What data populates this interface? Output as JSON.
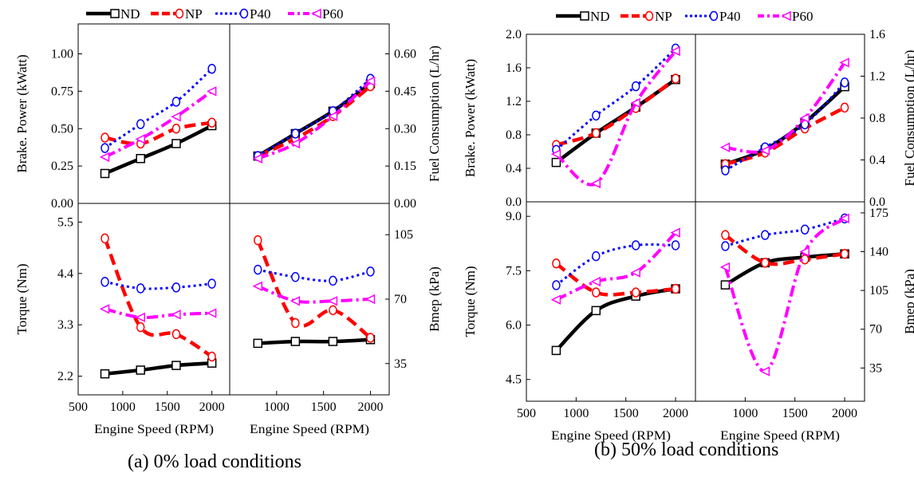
{
  "legend": [
    "ND",
    "NP",
    "P40",
    "P60"
  ],
  "series_styles": {
    "ND": {
      "color": "#000000",
      "marker": "square"
    },
    "NP": {
      "color": "#ff0000",
      "marker": "circle"
    },
    "P40": {
      "color": "#0000ff",
      "marker": "circle"
    },
    "P60": {
      "color": "#ff00ff",
      "marker": "triangle-left"
    }
  },
  "captions": {
    "a": "(a) 0% load conditions",
    "b": "(b) 50% load conditions"
  },
  "chart_data": [
    {
      "id": "a-brake-power",
      "panel": "a",
      "type": "line",
      "xlabel": "",
      "ylabel": "Brake. Power (kWatt)",
      "xlim": [
        500,
        2200
      ],
      "ylim": [
        0,
        1.2
      ],
      "yticks": [
        0.0,
        0.25,
        0.5,
        0.75,
        1.0
      ],
      "x": [
        800,
        1200,
        1600,
        2000
      ],
      "series": [
        {
          "name": "ND",
          "values": [
            0.2,
            0.3,
            0.4,
            0.52
          ]
        },
        {
          "name": "NP",
          "values": [
            0.44,
            0.4,
            0.5,
            0.54
          ]
        },
        {
          "name": "P40",
          "values": [
            0.37,
            0.53,
            0.68,
            0.9
          ]
        },
        {
          "name": "P60",
          "values": [
            0.31,
            0.43,
            0.58,
            0.75
          ]
        }
      ]
    },
    {
      "id": "a-fuel",
      "panel": "a",
      "type": "line",
      "xlabel": "",
      "ylabel": "Fuel Consumption (L/hr)",
      "xlim": [
        500,
        2200
      ],
      "ylim": [
        0,
        0.72
      ],
      "yticks": [
        0.0,
        0.15,
        0.3,
        0.45,
        0.6
      ],
      "x": [
        800,
        1200,
        1600,
        2000
      ],
      "series": [
        {
          "name": "ND",
          "values": [
            0.19,
            0.28,
            0.37,
            0.48
          ]
        },
        {
          "name": "NP",
          "values": [
            0.19,
            0.26,
            0.35,
            0.47
          ]
        },
        {
          "name": "P40",
          "values": [
            0.19,
            0.28,
            0.37,
            0.5
          ]
        },
        {
          "name": "P60",
          "values": [
            0.18,
            0.24,
            0.35,
            0.49
          ]
        }
      ]
    },
    {
      "id": "a-torque",
      "panel": "a",
      "type": "line",
      "xlabel": "Engine Speed (RPM)",
      "ylabel": "Torque (Nm)",
      "xlim": [
        500,
        2200
      ],
      "ylim": [
        1.8,
        5.9
      ],
      "yticks": [
        2.2,
        3.3,
        4.4,
        5.5
      ],
      "xticks": [
        500,
        1000,
        1500,
        2000
      ],
      "x": [
        800,
        1200,
        1600,
        2000
      ],
      "series": [
        {
          "name": "ND",
          "values": [
            2.25,
            2.33,
            2.43,
            2.48
          ]
        },
        {
          "name": "NP",
          "values": [
            5.15,
            3.25,
            3.1,
            2.62
          ]
        },
        {
          "name": "P40",
          "values": [
            4.22,
            4.08,
            4.1,
            4.18
          ]
        },
        {
          "name": "P60",
          "values": [
            3.64,
            3.46,
            3.52,
            3.55
          ]
        }
      ]
    },
    {
      "id": "a-bmep",
      "panel": "a",
      "type": "line",
      "xlabel": "Engine Speed (RPM)",
      "ylabel": "Bmep (kPa)",
      "xlim": [
        500,
        2200
      ],
      "ylim": [
        18,
        122
      ],
      "yticks": [
        35,
        70,
        105
      ],
      "xticks": [
        1000,
        1500,
        2000
      ],
      "x": [
        800,
        1200,
        1600,
        2000
      ],
      "series": [
        {
          "name": "ND",
          "values": [
            46,
            47,
            47,
            48
          ]
        },
        {
          "name": "NP",
          "values": [
            102,
            57,
            64,
            49
          ]
        },
        {
          "name": "P40",
          "values": [
            86,
            82,
            80,
            85
          ]
        },
        {
          "name": "P60",
          "values": [
            77,
            69,
            69,
            70
          ]
        }
      ]
    },
    {
      "id": "b-brake-power",
      "panel": "b",
      "type": "line",
      "xlabel": "",
      "ylabel": "Brake. Power (kWatt)",
      "xlim": [
        500,
        2200
      ],
      "ylim": [
        0,
        2.0
      ],
      "yticks": [
        0.0,
        0.4,
        0.8,
        1.2,
        1.6,
        2.0
      ],
      "x": [
        800,
        1200,
        1600,
        2000
      ],
      "series": [
        {
          "name": "ND",
          "values": [
            0.47,
            0.82,
            1.13,
            1.46
          ]
        },
        {
          "name": "NP",
          "values": [
            0.68,
            0.82,
            1.12,
            1.47
          ]
        },
        {
          "name": "P40",
          "values": [
            0.62,
            1.03,
            1.38,
            1.83
          ]
        },
        {
          "name": "P60",
          "values": [
            0.57,
            0.22,
            1.18,
            1.8
          ]
        }
      ]
    },
    {
      "id": "b-fuel",
      "panel": "b",
      "type": "line",
      "xlabel": "",
      "ylabel": "Fuel Consumption (L/hr)",
      "xlim": [
        500,
        2200
      ],
      "ylim": [
        0,
        1.6
      ],
      "yticks": [
        0.0,
        0.4,
        0.8,
        1.2,
        1.6
      ],
      "x": [
        800,
        1200,
        1600,
        2000
      ],
      "series": [
        {
          "name": "ND",
          "values": [
            0.36,
            0.5,
            0.76,
            1.1
          ]
        },
        {
          "name": "NP",
          "values": [
            0.36,
            0.47,
            0.7,
            0.9
          ]
        },
        {
          "name": "P40",
          "values": [
            0.3,
            0.52,
            0.74,
            1.14
          ]
        },
        {
          "name": "P60",
          "values": [
            0.52,
            0.49,
            0.8,
            1.33
          ]
        }
      ]
    },
    {
      "id": "b-torque",
      "panel": "b",
      "type": "line",
      "xlabel": "Engine Speed (RPM)",
      "ylabel": "Torque (Nm)",
      "xlim": [
        500,
        2200
      ],
      "ylim": [
        3.9,
        9.4
      ],
      "yticks": [
        4.5,
        6.0,
        7.5,
        9.0
      ],
      "xticks": [
        500,
        1000,
        1500,
        2000
      ],
      "x": [
        800,
        1200,
        1600,
        2000
      ],
      "series": [
        {
          "name": "ND",
          "values": [
            5.3,
            6.4,
            6.8,
            7.0
          ]
        },
        {
          "name": "NP",
          "values": [
            7.7,
            6.9,
            6.9,
            7.0
          ]
        },
        {
          "name": "P40",
          "values": [
            7.1,
            7.9,
            8.2,
            8.2
          ]
        },
        {
          "name": "P60",
          "values": [
            6.7,
            7.2,
            7.45,
            8.55
          ]
        }
      ]
    },
    {
      "id": "b-bmep",
      "panel": "b",
      "type": "line",
      "xlabel": "Engine Speed (RPM)",
      "ylabel": "Bmep (kPa)",
      "xlim": [
        500,
        2200
      ],
      "ylim": [
        5,
        185
      ],
      "yticks": [
        35,
        70,
        105,
        140,
        175
      ],
      "xticks": [
        1000,
        1500,
        2000
      ],
      "x": [
        800,
        1200,
        1600,
        2000
      ],
      "series": [
        {
          "name": "ND",
          "values": [
            110,
            130,
            135,
            138
          ]
        },
        {
          "name": "NP",
          "values": [
            155,
            130,
            133,
            138
          ]
        },
        {
          "name": "P40",
          "values": [
            145,
            155,
            160,
            170
          ]
        },
        {
          "name": "P60",
          "values": [
            126,
            32,
            140,
            170
          ]
        }
      ]
    }
  ]
}
